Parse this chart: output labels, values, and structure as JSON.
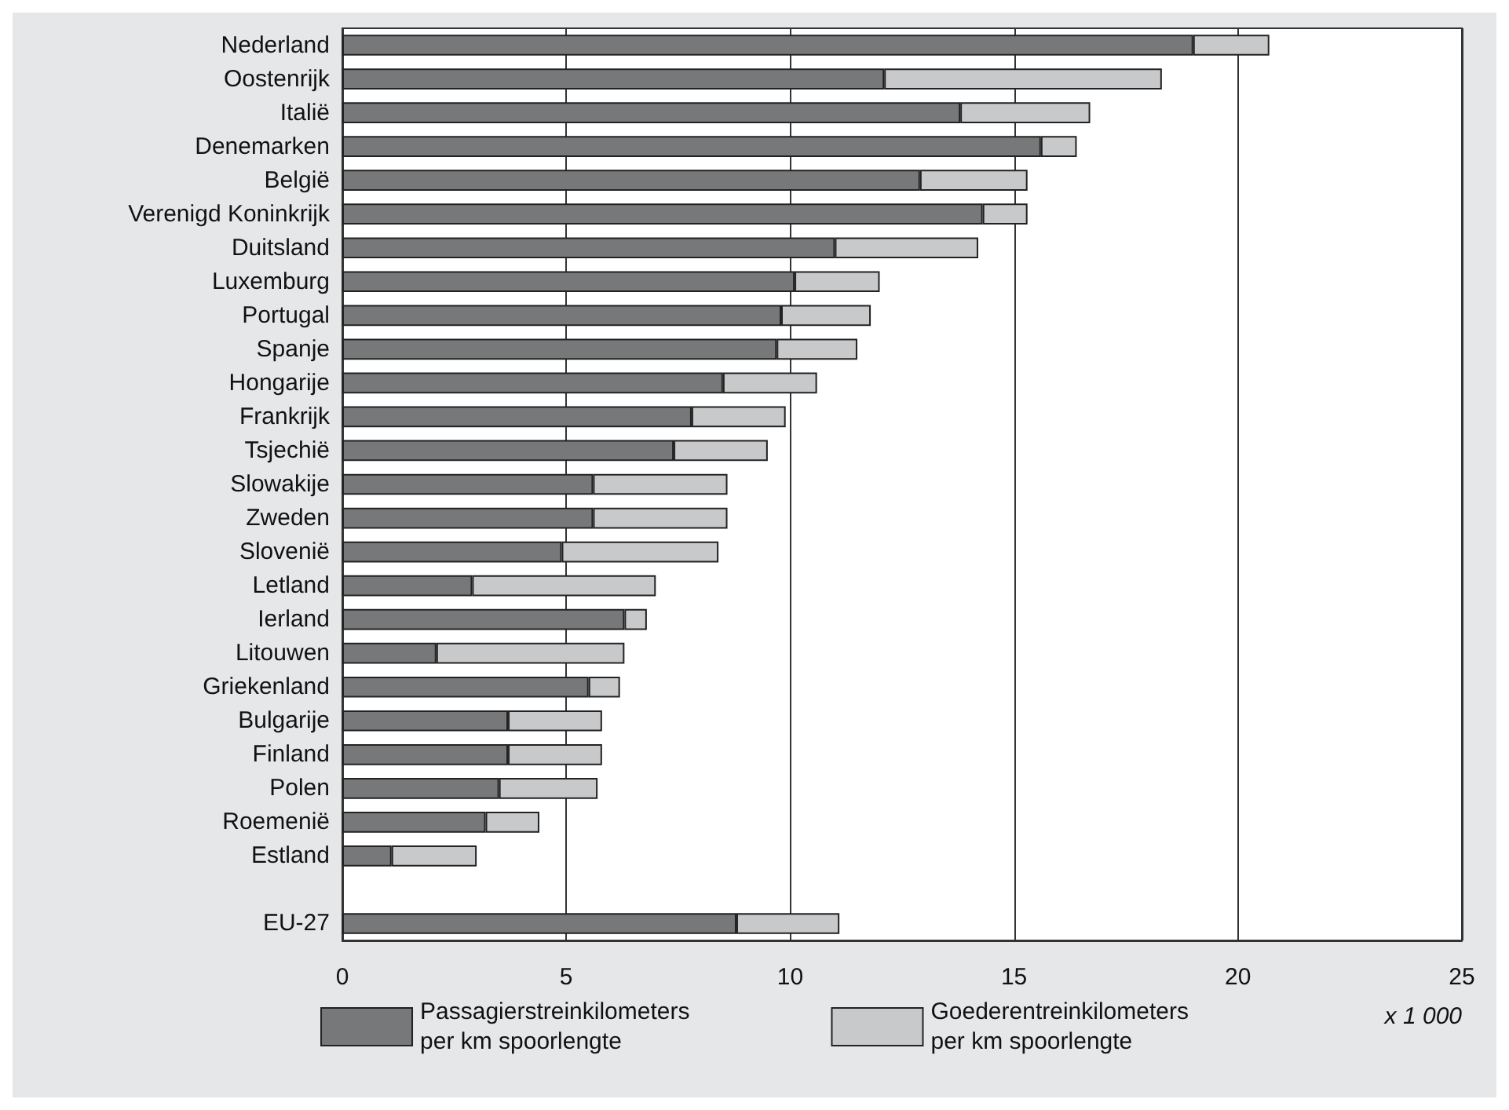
{
  "chart_data": {
    "type": "bar",
    "orientation": "horizontal",
    "stacked": true,
    "categories": [
      "Nederland",
      "Oostenrijk",
      "Italië",
      "Denemarken",
      "België",
      "Verenigd Koninkrijk",
      "Duitsland",
      "Luxemburg",
      "Portugal",
      "Spanje",
      "Hongarije",
      "Frankrijk",
      "Tsjechië",
      "Slowakije",
      "Zweden",
      "Slovenië",
      "Letland",
      "Ierland",
      "Litouwen",
      "Griekenland",
      "Bulgarije",
      "Finland",
      "Polen",
      "Roemenië",
      "Estland",
      null,
      "EU-27"
    ],
    "series": [
      {
        "name": "Passagierstreinkilometers\nper km spoorlengte",
        "color": "#77787a",
        "values": [
          19.0,
          12.1,
          13.8,
          15.6,
          12.9,
          14.3,
          11.0,
          10.1,
          9.8,
          9.7,
          8.5,
          7.8,
          7.4,
          5.6,
          5.6,
          4.9,
          2.9,
          6.3,
          2.1,
          5.5,
          3.7,
          3.7,
          3.5,
          3.2,
          1.1,
          null,
          8.8
        ]
      },
      {
        "name": "Goederentreinkilometers\nper km spoorlengte",
        "color": "#c8c9ca",
        "values": [
          1.7,
          6.2,
          2.9,
          0.8,
          2.4,
          1.0,
          3.2,
          1.9,
          2.0,
          1.8,
          2.1,
          2.1,
          2.1,
          3.0,
          3.0,
          3.5,
          4.1,
          0.5,
          4.2,
          0.7,
          2.1,
          2.1,
          2.2,
          1.2,
          1.9,
          null,
          2.3
        ]
      }
    ],
    "xlim": [
      0,
      25
    ],
    "xticks": [
      0,
      5,
      10,
      15,
      20,
      25
    ],
    "grid": "x",
    "legend": "bottom",
    "annotations": [
      "x 1 000"
    ]
  }
}
